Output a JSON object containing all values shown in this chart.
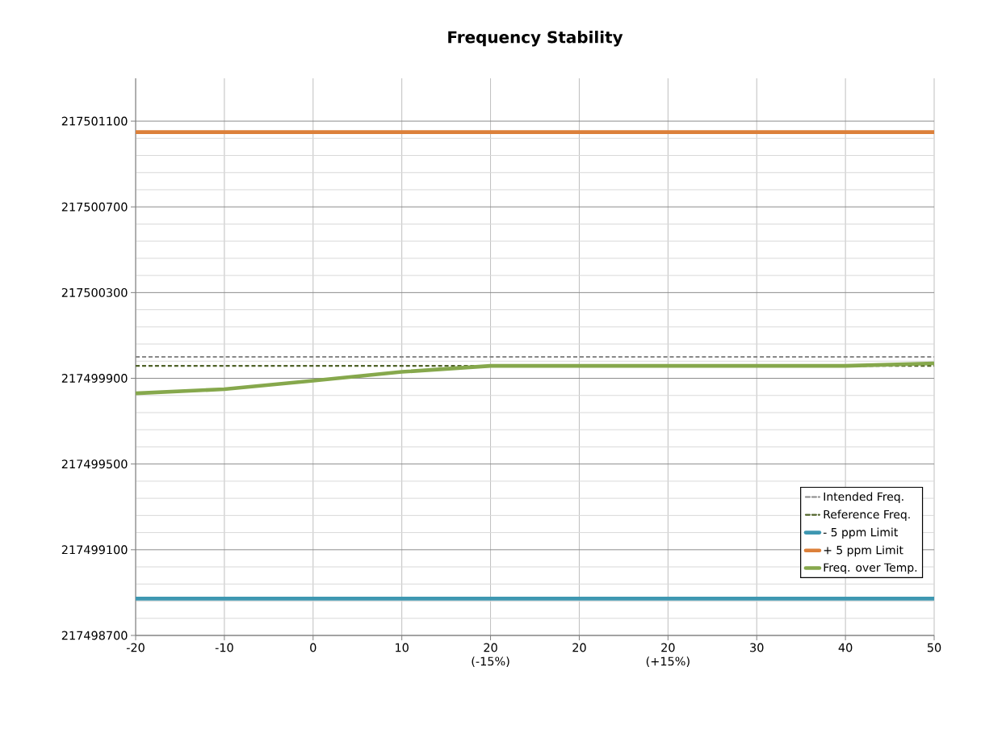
{
  "chart_data": {
    "type": "line",
    "title": "Frequency Stability",
    "categories": [
      "-20",
      "-10",
      "0",
      "10",
      "20 (-15%)",
      "20",
      "20 (+15%)",
      "30",
      "40",
      "50"
    ],
    "series": [
      {
        "name": "Freq. over Temp.",
        "color": "#86a84c",
        "line_style": "solid",
        "values": [
          217499830,
          217499849,
          217499889,
          217499930,
          217499958,
          217499958,
          217499958,
          217499958,
          217499958,
          217499970
        ]
      }
    ],
    "ref_lines": [
      {
        "axis": "y",
        "value": 217500000,
        "label": "Intended Freq.",
        "color": "#888888",
        "line_style": "dashed"
      },
      {
        "axis": "y",
        "value": 217499958,
        "label": "Reference Freq.",
        "color": "#4f6228",
        "line_style": "dashed"
      },
      {
        "axis": "y",
        "value": 217498872,
        "label": "- 5 ppm Limit",
        "color": "#3e97b1",
        "line_style": "solid"
      },
      {
        "axis": "y",
        "value": 217501049,
        "label": "+ 5 ppm Limit",
        "color": "#dc803a",
        "line_style": "solid"
      }
    ],
    "ylim": [
      217498700,
      217501300
    ],
    "yticks": [
      217498700,
      217499100,
      217499500,
      217499900,
      217500300,
      217500700,
      217501100
    ],
    "grid": true,
    "legend": "right",
    "marker": "none"
  }
}
